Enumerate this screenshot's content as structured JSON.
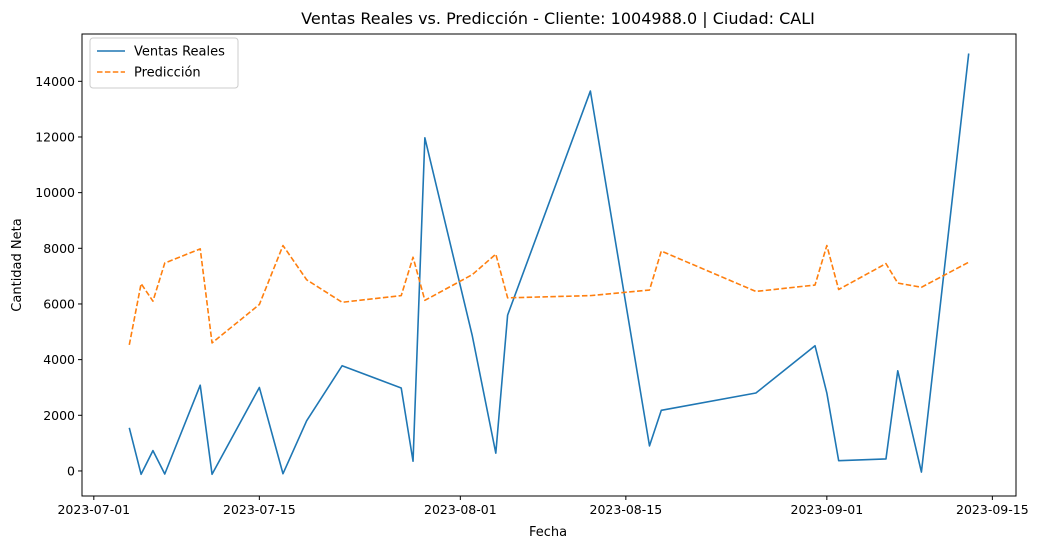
{
  "chart_data": {
    "type": "line",
    "title": "Ventas Reales vs. Predicción - Cliente: 1004988.0 | Ciudad: CALI",
    "xlabel": "Fecha",
    "ylabel": "Cantidad Neta",
    "x_axis": {
      "type": "date",
      "range": [
        "2023-06-30",
        "2023-09-17"
      ],
      "ticks": [
        {
          "date": "2023-07-01",
          "label": "2023-07-01"
        },
        {
          "date": "2023-07-15",
          "label": "2023-07-15"
        },
        {
          "date": "2023-08-01",
          "label": "2023-08-01"
        },
        {
          "date": "2023-08-15",
          "label": "2023-08-15"
        },
        {
          "date": "2023-09-01",
          "label": "2023-09-01"
        },
        {
          "date": "2023-09-15",
          "label": "2023-09-15"
        }
      ]
    },
    "y_axis": {
      "range": [
        -900,
        15700
      ],
      "ticks": [
        0,
        2000,
        4000,
        6000,
        8000,
        10000,
        12000,
        14000
      ],
      "tick_labels": [
        "0",
        "2000",
        "4000",
        "6000",
        "8000",
        "10000",
        "12000",
        "14000"
      ]
    },
    "grid": false,
    "legend": {
      "placement": "top-left"
    },
    "series": [
      {
        "name": "Ventas Reales",
        "color": "#1f77b4",
        "style": "solid",
        "points": [
          {
            "x": "2023-07-04",
            "y": 1550
          },
          {
            "x": "2023-07-05",
            "y": -120
          },
          {
            "x": "2023-07-06",
            "y": 730
          },
          {
            "x": "2023-07-07",
            "y": -110
          },
          {
            "x": "2023-07-10",
            "y": 3080
          },
          {
            "x": "2023-07-11",
            "y": -120
          },
          {
            "x": "2023-07-15",
            "y": 3000
          },
          {
            "x": "2023-07-17",
            "y": -100
          },
          {
            "x": "2023-07-19",
            "y": 1800
          },
          {
            "x": "2023-07-22",
            "y": 3780
          },
          {
            "x": "2023-07-27",
            "y": 2980
          },
          {
            "x": "2023-07-28",
            "y": 350
          },
          {
            "x": "2023-07-29",
            "y": 11970
          },
          {
            "x": "2023-08-02",
            "y": 4880
          },
          {
            "x": "2023-08-04",
            "y": 640
          },
          {
            "x": "2023-08-05",
            "y": 5600
          },
          {
            "x": "2023-08-12",
            "y": 13650
          },
          {
            "x": "2023-08-17",
            "y": 900
          },
          {
            "x": "2023-08-18",
            "y": 2180
          },
          {
            "x": "2023-08-26",
            "y": 2800
          },
          {
            "x": "2023-08-31",
            "y": 4500
          },
          {
            "x": "2023-09-01",
            "y": 2800
          },
          {
            "x": "2023-09-02",
            "y": 370
          },
          {
            "x": "2023-09-06",
            "y": 430
          },
          {
            "x": "2023-09-07",
            "y": 3600
          },
          {
            "x": "2023-09-09",
            "y": -40
          },
          {
            "x": "2023-09-13",
            "y": 15000
          }
        ]
      },
      {
        "name": "Predicción",
        "color": "#ff7f0e",
        "style": "dashed",
        "points": [
          {
            "x": "2023-07-04",
            "y": 4530
          },
          {
            "x": "2023-07-05",
            "y": 6730
          },
          {
            "x": "2023-07-06",
            "y": 6100
          },
          {
            "x": "2023-07-07",
            "y": 7470
          },
          {
            "x": "2023-07-10",
            "y": 7980
          },
          {
            "x": "2023-07-11",
            "y": 4600
          },
          {
            "x": "2023-07-15",
            "y": 5980
          },
          {
            "x": "2023-07-17",
            "y": 8100
          },
          {
            "x": "2023-07-19",
            "y": 6870
          },
          {
            "x": "2023-07-22",
            "y": 6060
          },
          {
            "x": "2023-07-27",
            "y": 6300
          },
          {
            "x": "2023-07-28",
            "y": 7680
          },
          {
            "x": "2023-07-29",
            "y": 6130
          },
          {
            "x": "2023-08-02",
            "y": 7050
          },
          {
            "x": "2023-08-04",
            "y": 7790
          },
          {
            "x": "2023-08-05",
            "y": 6220
          },
          {
            "x": "2023-08-12",
            "y": 6300
          },
          {
            "x": "2023-08-17",
            "y": 6500
          },
          {
            "x": "2023-08-18",
            "y": 7900
          },
          {
            "x": "2023-08-26",
            "y": 6450
          },
          {
            "x": "2023-08-31",
            "y": 6680
          },
          {
            "x": "2023-09-01",
            "y": 8100
          },
          {
            "x": "2023-09-02",
            "y": 6520
          },
          {
            "x": "2023-09-06",
            "y": 7450
          },
          {
            "x": "2023-09-07",
            "y": 6750
          },
          {
            "x": "2023-09-09",
            "y": 6600
          },
          {
            "x": "2023-09-13",
            "y": 7500
          }
        ]
      }
    ]
  }
}
